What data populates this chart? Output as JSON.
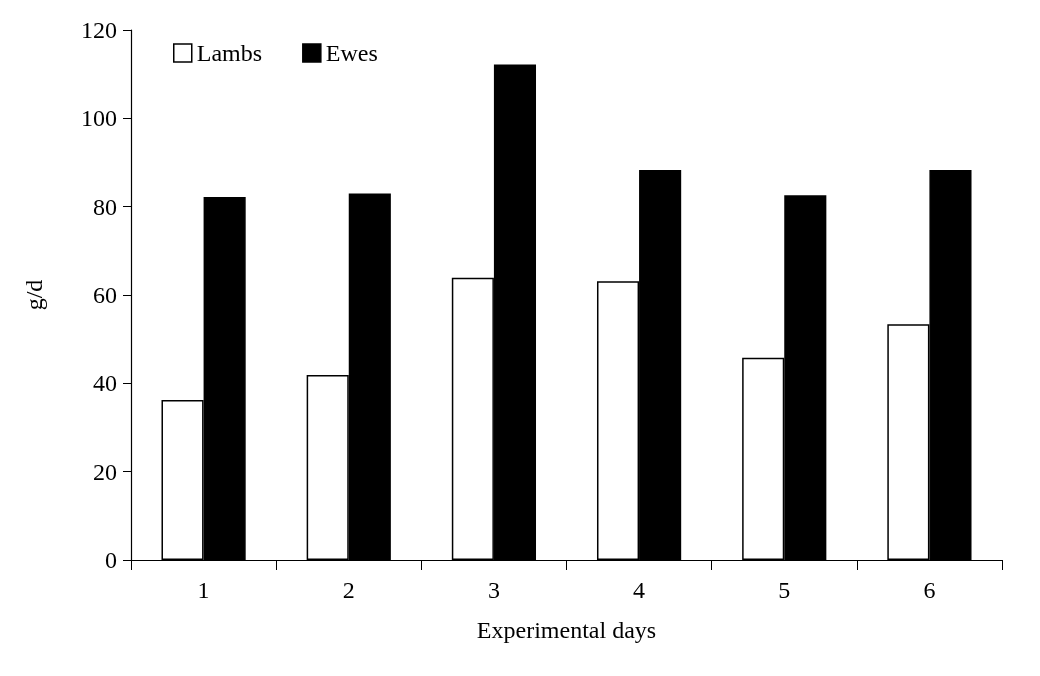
{
  "chart_data": {
    "type": "bar",
    "xlabel": "Experimental days",
    "ylabel": "g/d",
    "categories": [
      "1",
      "2",
      "3",
      "4",
      "5",
      "6"
    ],
    "series": [
      {
        "name": "Lambs",
        "color": "#ffffff",
        "values": [
          36.2,
          41.9,
          63.9,
          63.1,
          45.8,
          53.4
        ]
      },
      {
        "name": "Ewes",
        "color": "#000000",
        "values": [
          82.2,
          83.0,
          112.2,
          88.3,
          82.6,
          88.3
        ]
      }
    ],
    "ylim": [
      0,
      120
    ],
    "yticks": [
      0,
      20,
      40,
      60,
      80,
      100,
      120
    ],
    "grid": false,
    "legend": "top left"
  }
}
